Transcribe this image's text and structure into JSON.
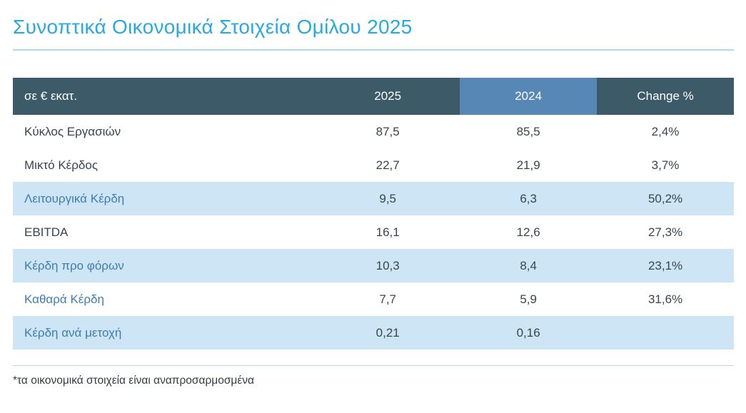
{
  "page": {
    "title": "Συνοπτικά Οικονομικά Στοιχεία Ομίλου 2025",
    "footnote": "*τα οικονομικά στοιχεία είναι αναπροσαρμοσμένα"
  },
  "table": {
    "columns": [
      "σε € εκατ.",
      "2025",
      "2024",
      "Change %"
    ],
    "rows": [
      {
        "label": "Κύκλος Εργασιών",
        "y2025": "87,5",
        "y2024": "85,5",
        "change": "2,4%",
        "highlight": false,
        "blue_label": false
      },
      {
        "label": "Μικτό Κέρδος",
        "y2025": "22,7",
        "y2024": "21,9",
        "change": "3,7%",
        "highlight": false,
        "blue_label": false
      },
      {
        "label": "Λειτουργικά Κέρδη",
        "y2025": "9,5",
        "y2024": "6,3",
        "change": "50,2%",
        "highlight": true,
        "blue_label": true
      },
      {
        "label": "EBITDA",
        "y2025": "16,1",
        "y2024": "12,6",
        "change": "27,3%",
        "highlight": false,
        "blue_label": false
      },
      {
        "label": "Κέρδη προ φόρων",
        "y2025": "10,3",
        "y2024": "8,4",
        "change": "23,1%",
        "highlight": true,
        "blue_label": true
      },
      {
        "label": "Καθαρά Κέρδη",
        "y2025": "7,7",
        "y2024": "5,9",
        "change": "31,6%",
        "highlight": false,
        "blue_label": true
      },
      {
        "label": "Κέρδη ανά μετοχή",
        "y2025": "0,21",
        "y2024": "0,16",
        "change": "",
        "highlight": true,
        "blue_label": true
      }
    ]
  },
  "colors": {
    "accent_title": "#29a9e0",
    "title_underline": "#aadcf2",
    "header_bg": "#3c5a68",
    "header_2024_bg": "#5787b4",
    "row_highlight_bg": "#cee5f5",
    "blue_label_text": "#3f7cb5",
    "body_text": "#39454e"
  }
}
